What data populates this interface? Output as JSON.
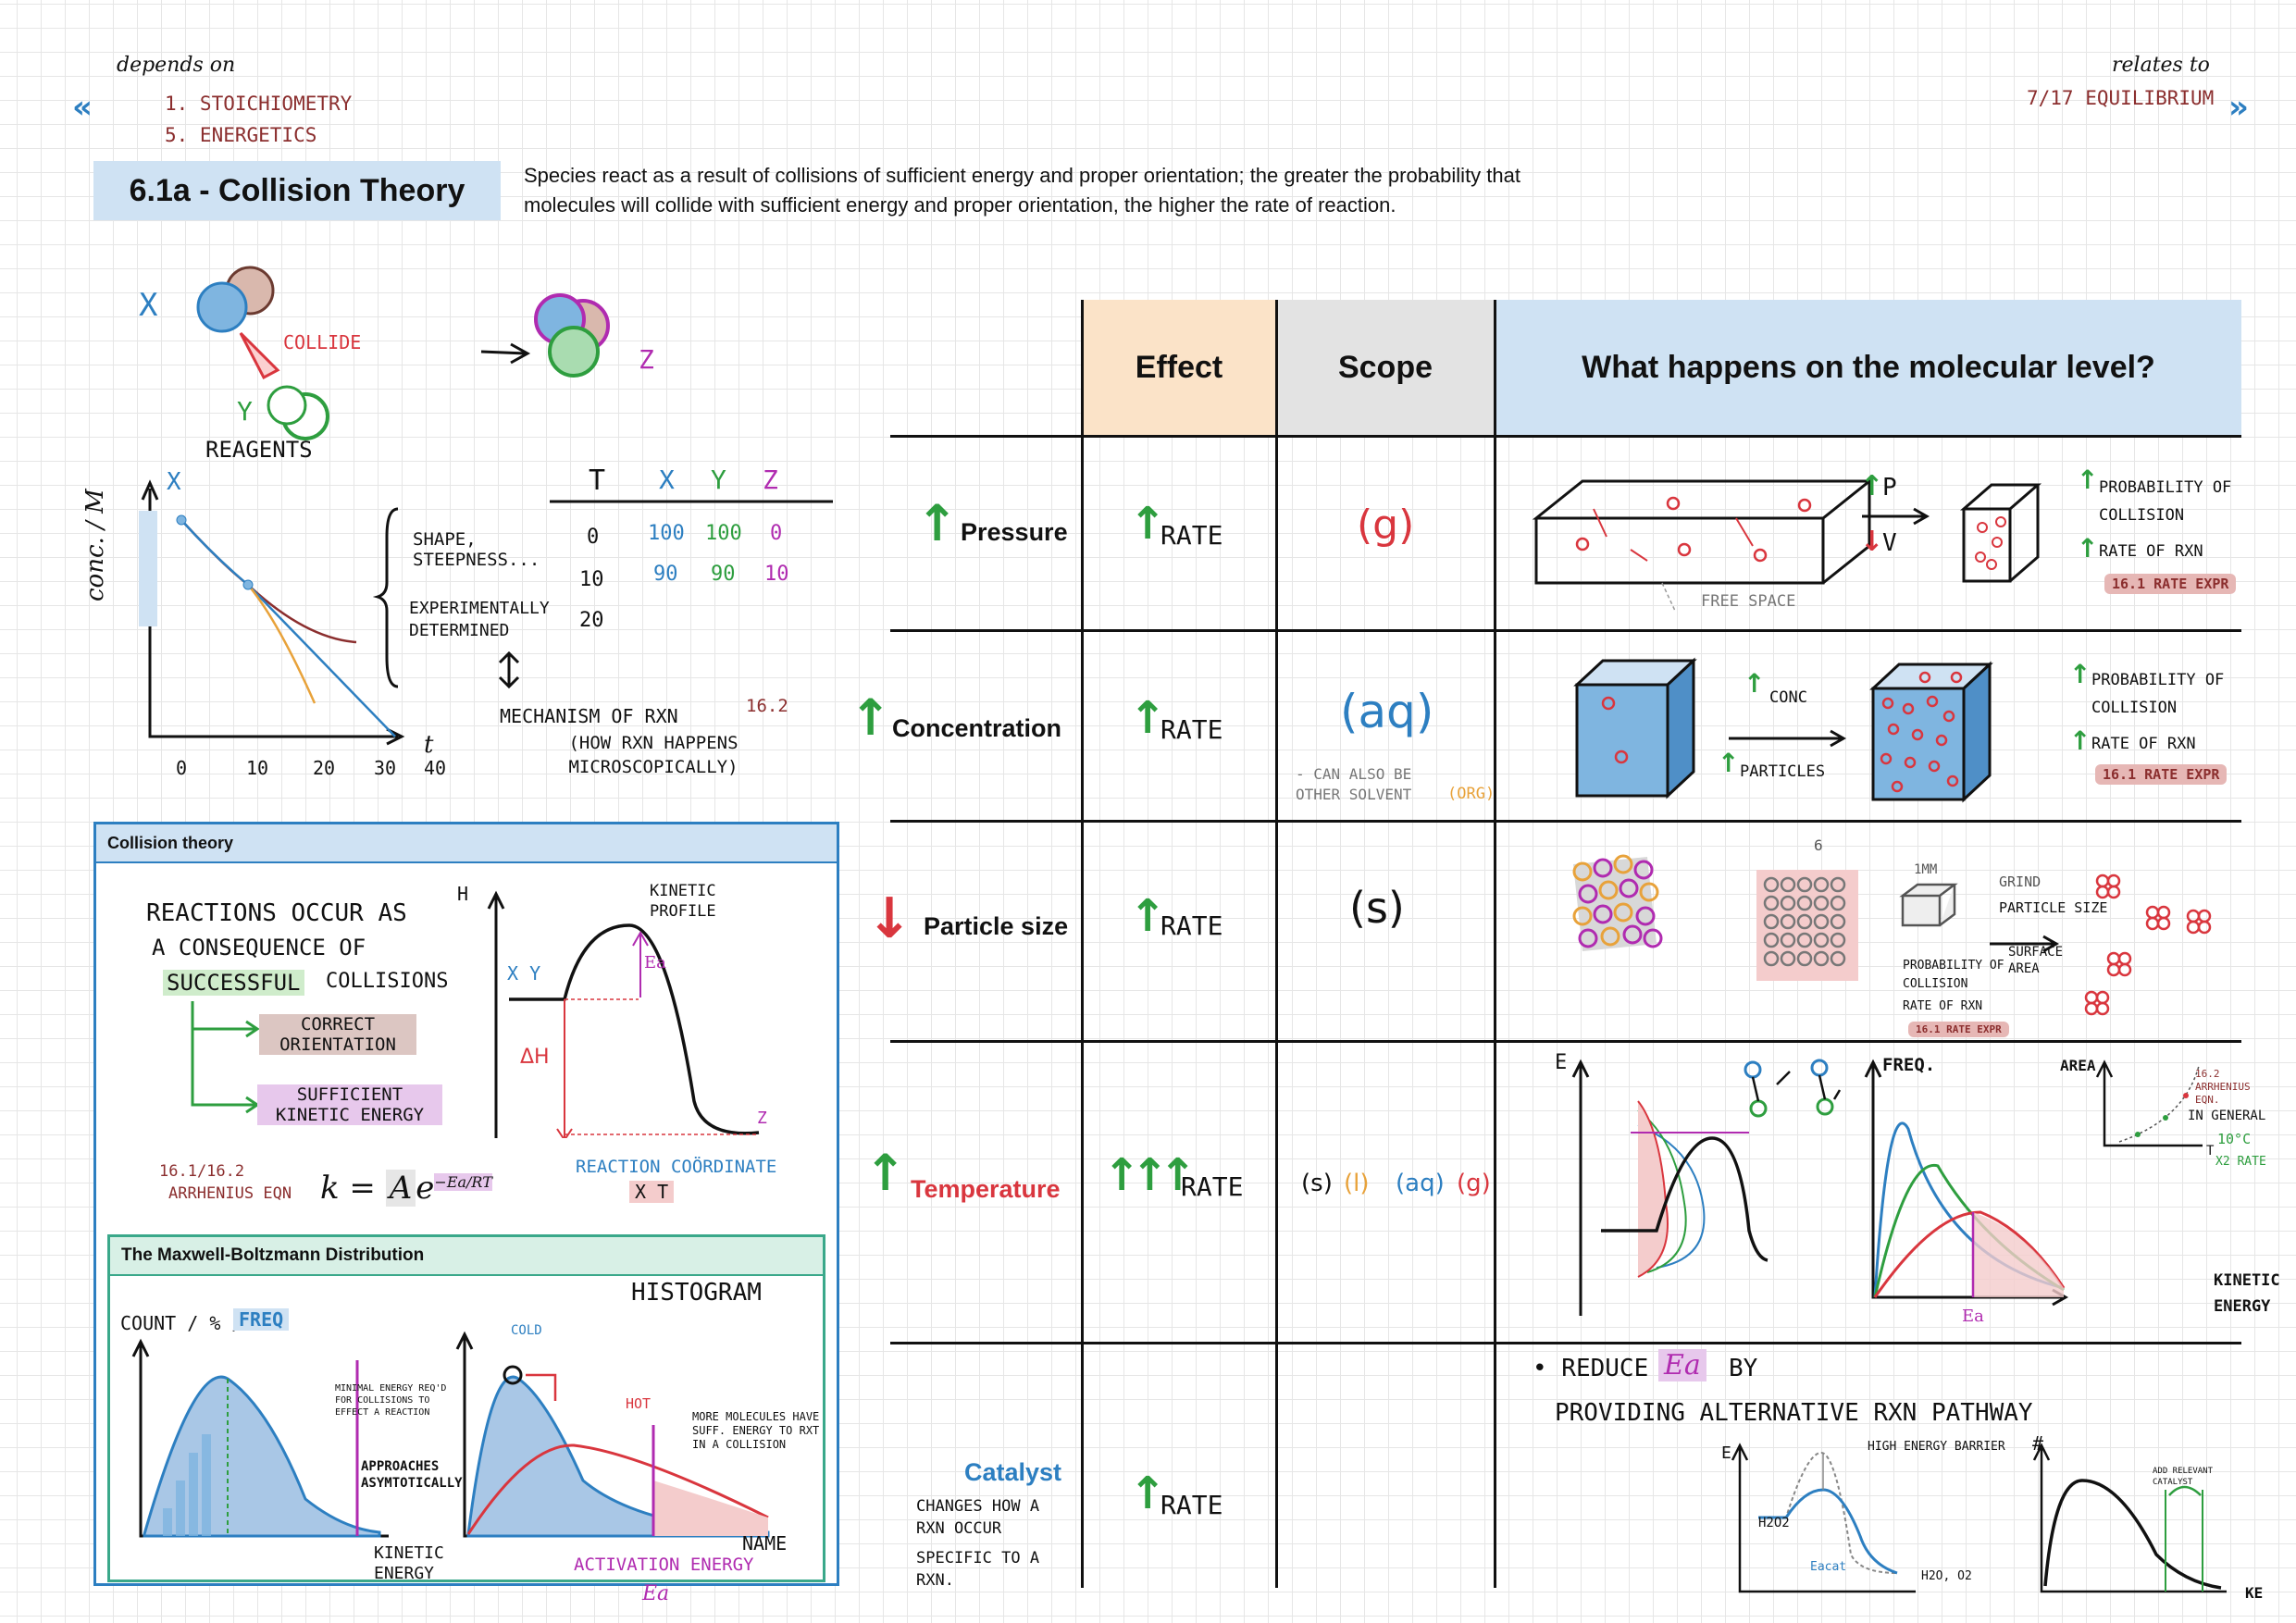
{
  "nav": {
    "depends_on": "depends on",
    "depends_items": [
      "1. STOICHIOMETRY",
      "5. ENERGETICS"
    ],
    "relates_to": "relates to",
    "relates_items": [
      "7/17 EQUILIBRIUM"
    ],
    "prev_icon": "double-chevron-left-icon",
    "next_icon": "double-chevron-right-icon"
  },
  "header": {
    "title": "6.1a - Collision Theory",
    "description": "Species react as a result of collisions of sufficient energy and proper orientation; the greater the probability that molecules will collide with sufficient energy and proper orientation, the higher the rate of reaction."
  },
  "sketch": {
    "x": "X",
    "y": "Y",
    "z": "Z",
    "collide": "COLLIDE",
    "reagents": "REAGENTS",
    "conc_axis": "conc. / M",
    "t_axis": "t",
    "ticks": [
      "0",
      "10",
      "20",
      "30",
      "40"
    ],
    "shape_note": "SHAPE, STEEPNESS...",
    "exp_note": "EXPERIMENTALLY DETERMINED",
    "mechanism": "MECHANISM OF RXN",
    "mechanism_ref": "16.2",
    "mechanism_sub": "(HOW RXN HAPPENS MICROSCOPICALLY)",
    "table": {
      "headers": [
        "t",
        "X",
        "Y",
        "Z"
      ],
      "rows": [
        [
          "0",
          "100",
          "100",
          "0"
        ],
        [
          "10",
          "90",
          "90",
          "10"
        ],
        [
          "20",
          "",
          "",
          ""
        ]
      ]
    }
  },
  "table": {
    "headers": {
      "effect": "Effect",
      "scope": "Scope",
      "molecular": "What happens on the molecular level?"
    },
    "rate_label": "RATE",
    "rows": [
      {
        "label": "Pressure",
        "scope": "(g)"
      },
      {
        "label": "Concentration",
        "scope": "(aq)",
        "scope_note": "- CAN ALSO BE OTHER SOLVENT",
        "scope_note2": "(org)"
      },
      {
        "label": "Particle size",
        "scope": "(s)"
      },
      {
        "label": "Temperature",
        "scope_parts": [
          "(s)",
          "(l)",
          "(aq)",
          "(g)"
        ]
      },
      {
        "label": "Catalyst",
        "notes": [
          "CHANGES HOW A RXN OCCUR",
          "SPECIFIC TO A RXN."
        ]
      }
    ],
    "pressure": {
      "p": "P",
      "v": "V",
      "free_space": "FREE SPACE",
      "prob": "PROBABILITY OF COLLISION",
      "rate": "RATE OF RXN",
      "ref": "16.1 RATE EXPR"
    },
    "concentration": {
      "conc": "CONC",
      "particles": "PARTICLES",
      "prob": "PROBABILITY OF COLLISION",
      "rate": "RATE OF RXN",
      "ref": "16.1 RATE EXPR"
    },
    "particle": {
      "size": "1mm",
      "grind": "GRIND",
      "psize": "PARTICLE SIZE",
      "area": "SURFACE AREA",
      "prob": "PROBABILITY OF COLLISION",
      "rate": "RATE OF RXN",
      "ref": "16.1 RATE EXPR",
      "n": "6"
    },
    "temperature": {
      "e": "E",
      "freq": "FREQ.",
      "area": "AREA",
      "arrhenius": "16.2 ARRHENIUS EQN.",
      "general": "IN GENERAL",
      "ten": "10°C",
      "x2": "X2 RATE",
      "t": "T",
      "ke": "KINETIC ENERGY",
      "ea": "Ea"
    },
    "catalyst": {
      "reduce": "• REDUCE",
      "ea": "Ea",
      "by": "BY",
      "alt": "PROVIDING ALTERNATIVE RXN PATHWAY",
      "barrier": "HIGH ENERGY BARRIER",
      "h2o2": "H2O2",
      "products": "H2O, O2",
      "eacat": "Eacat",
      "hash": "#",
      "ke": "KE",
      "add": "ADD RELEVANT CATALYST"
    }
  },
  "collision_panel": {
    "title": "Collision theory",
    "l1": "REACTIONS OCCUR AS",
    "l2": "A CONSEQUENCE OF",
    "successful": "SUCCESSFUL",
    "collisions": "COLLISIONS",
    "correct": "CORRECT ORIENTATION",
    "sufficient": "SUFFICIENT KINETIC ENERGY",
    "arrh_ref": "16.1/16.2",
    "arrh": "ARRHENIUS EQN",
    "h": "H",
    "kinetic_profile": "KINETIC PROFILE",
    "xy": "X Y",
    "z": "Z",
    "ea": "Ea",
    "dh": "ΔH",
    "coord": "REACTION COÖRDINATE",
    "xt": "X  t"
  },
  "mb_panel": {
    "title": "The Maxwell-Boltzmann Distribution",
    "histogram": "HISTOGRAM",
    "count": "COUNT / % /",
    "freq": "FREQ",
    "min_energy": "MINIMAL ENERGY REQ'D FOR COLLISIONS TO EFFECT A REACTION",
    "approaches": "APPROACHES ASYMTOTICALLY",
    "kinetic": "KINETIC ENERGY",
    "cold": "COLD",
    "hot": "HOT",
    "more": "MORE MOLECULES HAVE SUFF. ENERGY TO RXT IN A COLLISION",
    "activation": "ACTIVATION ENERGY",
    "ea": "Ea",
    "name": "NAME"
  },
  "colors": {
    "accent_blue": "#2d7fc1",
    "maroon": "#8b2e2e",
    "up_green": "#2e9e3f",
    "down_red": "#d9363e",
    "effect_bg": "#fbe3c8",
    "scope_bg": "#e3e3e3",
    "mol_bg": "#cfe2f3"
  }
}
